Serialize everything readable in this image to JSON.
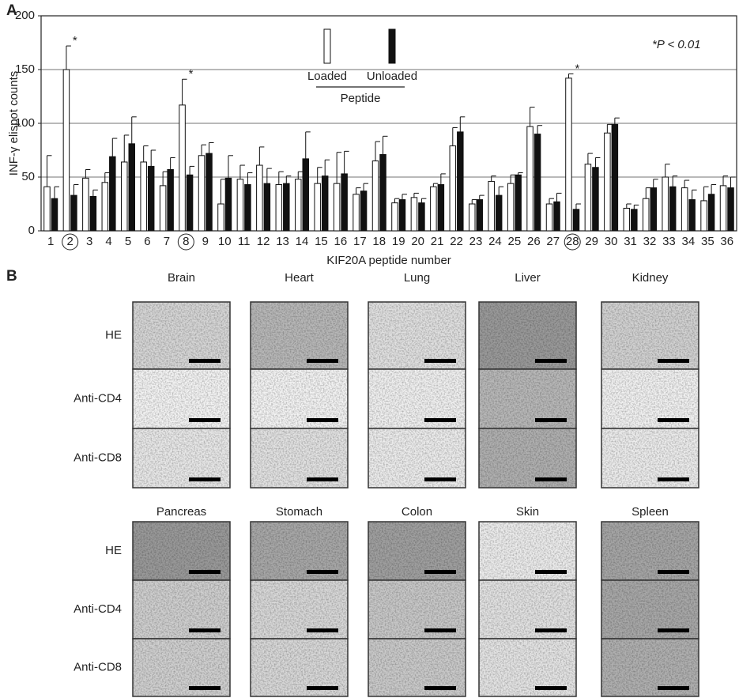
{
  "chart_data": {
    "type": "bar",
    "panel_label": "A",
    "x_label": "KIF20A peptide number",
    "y_label": "INF-γ elispot counts",
    "categories": [
      "1",
      "2",
      "3",
      "4",
      "5",
      "6",
      "7",
      "8",
      "9",
      "10",
      "11",
      "12",
      "13",
      "14",
      "15",
      "16",
      "17",
      "18",
      "19",
      "20",
      "21",
      "22",
      "23",
      "24",
      "25",
      "26",
      "27",
      "28",
      "29",
      "30",
      "31",
      "32",
      "33",
      "34",
      "35",
      "36"
    ],
    "series": [
      {
        "name": "Loaded",
        "color": "#ffffff",
        "values": [
          41,
          150,
          49,
          45,
          64,
          64,
          42,
          117,
          70,
          25,
          48,
          61,
          43,
          48,
          44,
          44,
          34,
          65,
          26,
          31,
          41,
          79,
          25,
          46,
          44,
          97,
          25,
          142,
          62,
          91,
          21,
          30,
          50,
          40,
          28,
          42
        ],
        "errors": [
          29,
          22,
          8,
          9,
          25,
          15,
          13,
          24,
          10,
          23,
          13,
          17,
          12,
          7,
          15,
          29,
          6,
          18,
          4,
          4,
          3,
          17,
          4,
          5,
          8,
          18,
          5,
          4,
          10,
          8,
          4,
          10,
          12,
          7,
          13,
          9
        ]
      },
      {
        "name": "Unloaded",
        "color": "#111111",
        "values": [
          30,
          33,
          32,
          69,
          81,
          60,
          57,
          52,
          72,
          49,
          43,
          44,
          44,
          67,
          51,
          53,
          37,
          71,
          29,
          26,
          43,
          92,
          29,
          33,
          52,
          90,
          27,
          20,
          59,
          99,
          20,
          40,
          41,
          29,
          34,
          40
        ],
        "errors": [
          11,
          10,
          6,
          17,
          25,
          15,
          11,
          8,
          10,
          21,
          11,
          14,
          7,
          25,
          15,
          21,
          7,
          17,
          5,
          4,
          10,
          14,
          4,
          8,
          2,
          8,
          8,
          5,
          9,
          6,
          4,
          8,
          10,
          9,
          9,
          10
        ]
      }
    ],
    "legend_title": "Peptide",
    "significant": [
      1,
      7,
      27
    ],
    "significance_marker": "*",
    "note": "*P < 0.01",
    "ylim": [
      0,
      200
    ],
    "yticks": [
      0,
      50,
      100,
      150,
      200
    ],
    "grid": true
  },
  "panel_b": {
    "label": "B",
    "row_labels": [
      "HE",
      "Anti-CD4",
      "Anti-CD8"
    ],
    "groups": [
      [
        "Brain",
        "Heart",
        "Lung",
        "Liver",
        "Kidney"
      ],
      [
        "Pancreas",
        "Stomach",
        "Colon",
        "Skin",
        "Spleen"
      ]
    ]
  }
}
